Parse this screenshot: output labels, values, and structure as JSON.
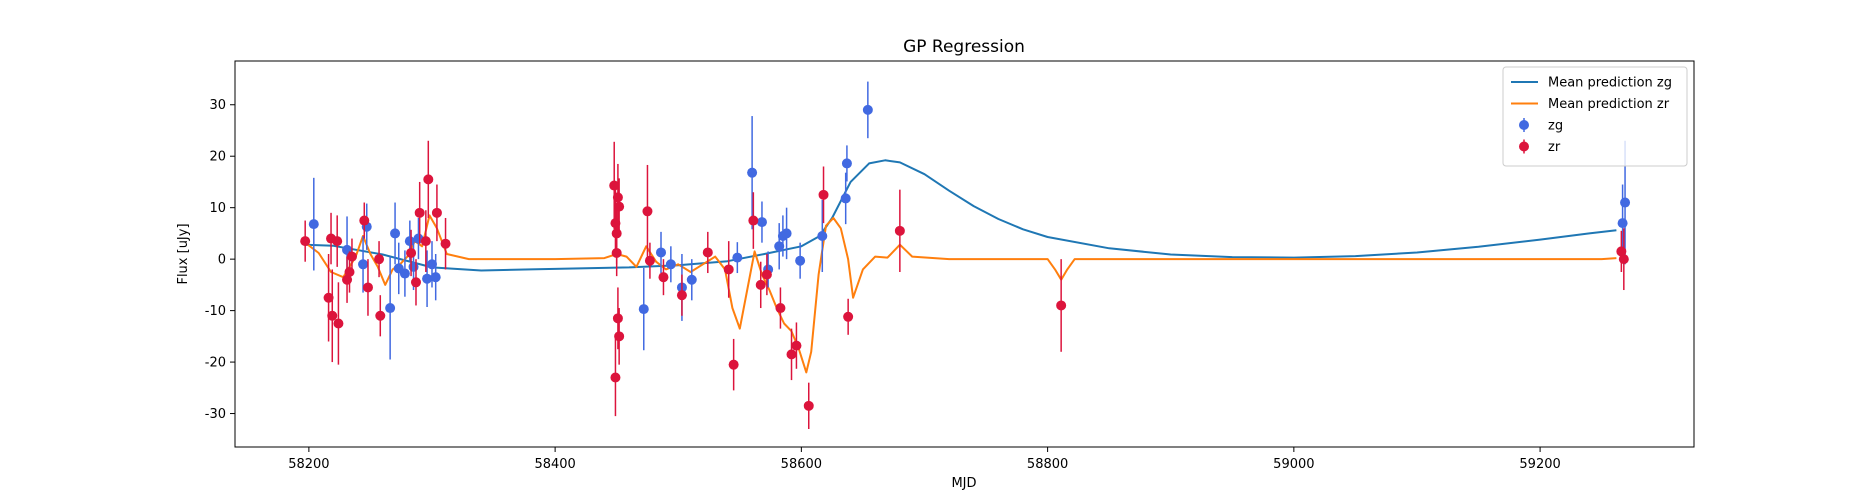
{
  "chart_data": {
    "type": "scatter",
    "title": "GP Regression",
    "xlabel": "MJD",
    "ylabel": "Flux [uJy]",
    "xlim": [
      58140,
      59325
    ],
    "ylim": [
      -36.5,
      38.5
    ],
    "xticks": [
      58200,
      58400,
      58600,
      58800,
      59000,
      59200
    ],
    "yticks": [
      -30,
      -20,
      -10,
      0,
      10,
      20,
      30
    ],
    "grid": false,
    "legend_position": "top-right",
    "legend": [
      {
        "label": "Mean prediction zg",
        "kind": "line",
        "color": "#1f77b4"
      },
      {
        "label": "Mean prediction zr",
        "kind": "line",
        "color": "#ff7f0e"
      },
      {
        "label": "zg",
        "kind": "errorbar",
        "color": "#4169e1"
      },
      {
        "label": "zr",
        "kind": "errorbar",
        "color": "#dc143c"
      }
    ],
    "series": [
      {
        "name": "Mean prediction zg",
        "kind": "line",
        "color": "#1f77b4",
        "x": [
          58197,
          58220,
          58260,
          58300,
          58340,
          58380,
          58420,
          58460,
          58500,
          58540,
          58570,
          58600,
          58615,
          58625,
          58640,
          58655,
          58668,
          58680,
          58700,
          58720,
          58740,
          58760,
          58780,
          58800,
          58850,
          58900,
          58950,
          59000,
          59050,
          59100,
          59150,
          59200,
          59240,
          59262
        ],
        "y": [
          2.8,
          2.6,
          0.9,
          -1.6,
          -2.2,
          -2.0,
          -1.8,
          -1.6,
          -1.2,
          -0.4,
          1.0,
          2.5,
          4.5,
          8.0,
          15.0,
          18.6,
          19.2,
          18.8,
          16.5,
          13.3,
          10.3,
          7.8,
          5.8,
          4.3,
          2.1,
          0.9,
          0.4,
          0.3,
          0.6,
          1.3,
          2.4,
          3.8,
          5.0,
          5.6
        ]
      },
      {
        "name": "Mean prediction zr",
        "kind": "line",
        "color": "#ff7f0e",
        "x": [
          58197,
          58208,
          58218,
          58228,
          58238,
          58244,
          58250,
          58256,
          58262,
          58268,
          58274,
          58280,
          58286,
          58292,
          58298,
          58304,
          58312,
          58330,
          58400,
          58440,
          58450,
          58458,
          58466,
          58474,
          58482,
          58490,
          58500,
          58510,
          58520,
          58530,
          58538,
          58544,
          58550,
          58556,
          58562,
          58568,
          58574,
          58580,
          58586,
          58592,
          58598,
          58604,
          58608,
          58614,
          58620,
          58626,
          58632,
          58638,
          58642,
          58650,
          58660,
          58670,
          58680,
          58690,
          58720,
          58800,
          58806,
          58811,
          58816,
          58822,
          58840,
          59000,
          59250,
          59262
        ],
        "y": [
          3.2,
          1.2,
          -2.5,
          -3.5,
          0.5,
          4.5,
          1.0,
          -1.5,
          -5.0,
          -2.0,
          -1.0,
          0.5,
          3.5,
          2.5,
          8.5,
          6.0,
          1.0,
          0.0,
          0.0,
          0.2,
          1.0,
          0.5,
          -1.5,
          2.5,
          -0.5,
          -2.0,
          -1.0,
          -2.5,
          -1.0,
          0.5,
          -2.0,
          -9.5,
          -13.5,
          -6.0,
          1.5,
          -3.0,
          -6.0,
          -9.5,
          -12.5,
          -14.0,
          -17.5,
          -22.0,
          -18.0,
          -3.0,
          6.5,
          8.0,
          6.0,
          0.0,
          -7.5,
          -2.0,
          0.5,
          0.3,
          2.8,
          0.5,
          0.0,
          0.0,
          -2.0,
          -4.0,
          -2.0,
          0.0,
          0.0,
          0.0,
          0.0,
          0.2
        ]
      },
      {
        "name": "zg",
        "kind": "errorbar",
        "color": "#4169e1",
        "points": [
          {
            "x": 58204,
            "y": 6.8,
            "err": 9.0
          },
          {
            "x": 58231,
            "y": 1.8,
            "err": 6.5
          },
          {
            "x": 58244,
            "y": -1.0,
            "err": 5.5
          },
          {
            "x": 58247,
            "y": 6.3,
            "err": 4.5
          },
          {
            "x": 58266,
            "y": -9.5,
            "err": 10.0
          },
          {
            "x": 58270,
            "y": 5.0,
            "err": 6.0
          },
          {
            "x": 58273,
            "y": -1.8,
            "err": 5.0
          },
          {
            "x": 58278,
            "y": -2.8,
            "err": 4.5
          },
          {
            "x": 58282,
            "y": 3.5,
            "err": 4.0
          },
          {
            "x": 58285,
            "y": -1.5,
            "err": 4.5
          },
          {
            "x": 58289,
            "y": 4.0,
            "err": 4.0
          },
          {
            "x": 58296,
            "y": -3.8,
            "err": 5.5
          },
          {
            "x": 58300,
            "y": -1.0,
            "err": 4.5
          },
          {
            "x": 58303,
            "y": -3.5,
            "err": 4.5
          },
          {
            "x": 58472,
            "y": -9.7,
            "err": 8.0
          },
          {
            "x": 58486,
            "y": 1.3,
            "err": 4.0
          },
          {
            "x": 58494,
            "y": -1.0,
            "err": 3.5
          },
          {
            "x": 58503,
            "y": -5.5,
            "err": 6.5
          },
          {
            "x": 58511,
            "y": -4.0,
            "err": 4.0
          },
          {
            "x": 58548,
            "y": 0.3,
            "err": 3.0
          },
          {
            "x": 58560,
            "y": 16.8,
            "err": 11.0
          },
          {
            "x": 58568,
            "y": 7.2,
            "err": 4.0
          },
          {
            "x": 58573,
            "y": -2.0,
            "err": 3.5
          },
          {
            "x": 58582,
            "y": 2.5,
            "err": 4.5
          },
          {
            "x": 58585,
            "y": 4.5,
            "err": 4.0
          },
          {
            "x": 58588,
            "y": 5.0,
            "err": 5.0
          },
          {
            "x": 58599,
            "y": -0.3,
            "err": 3.5
          },
          {
            "x": 58617,
            "y": 4.5,
            "err": 7.0
          },
          {
            "x": 58636,
            "y": 11.8,
            "err": 5.0
          },
          {
            "x": 58637,
            "y": 18.6,
            "err": 3.5
          },
          {
            "x": 58654,
            "y": 29.0,
            "err": 5.5
          },
          {
            "x": 59267,
            "y": 7.0,
            "err": 7.5
          },
          {
            "x": 59269,
            "y": 11.0,
            "err": 12.0
          }
        ]
      },
      {
        "name": "zr",
        "kind": "errorbar",
        "color": "#dc143c",
        "points": [
          {
            "x": 58197,
            "y": 3.5,
            "err": 4.0
          },
          {
            "x": 58216,
            "y": -7.5,
            "err": 8.5
          },
          {
            "x": 58218,
            "y": 4.0,
            "err": 5.0
          },
          {
            "x": 58219,
            "y": -11.0,
            "err": 9.0
          },
          {
            "x": 58223,
            "y": 3.5,
            "err": 5.0
          },
          {
            "x": 58224,
            "y": -12.5,
            "err": 8.0
          },
          {
            "x": 58231,
            "y": -4.0,
            "err": 4.5
          },
          {
            "x": 58233,
            "y": -2.5,
            "err": 4.0
          },
          {
            "x": 58235,
            "y": 0.5,
            "err": 3.5
          },
          {
            "x": 58245,
            "y": 7.5,
            "err": 3.5
          },
          {
            "x": 58248,
            "y": -5.5,
            "err": 5.5
          },
          {
            "x": 58257,
            "y": 0.0,
            "err": 3.5
          },
          {
            "x": 58258,
            "y": -11.0,
            "err": 4.0
          },
          {
            "x": 58283,
            "y": 1.2,
            "err": 4.5
          },
          {
            "x": 58287,
            "y": -4.5,
            "err": 4.5
          },
          {
            "x": 58290,
            "y": 9.0,
            "err": 6.0
          },
          {
            "x": 58295,
            "y": 3.5,
            "err": 6.0
          },
          {
            "x": 58297,
            "y": 15.5,
            "err": 7.5
          },
          {
            "x": 58304,
            "y": 9.0,
            "err": 5.5
          },
          {
            "x": 58311,
            "y": 3.0,
            "err": 5.0
          },
          {
            "x": 58448,
            "y": 14.3,
            "err": 8.5
          },
          {
            "x": 58449,
            "y": 7.0,
            "err": 6.5
          },
          {
            "x": 58450,
            "y": 5.0,
            "err": 6.0
          },
          {
            "x": 58450,
            "y": 1.2,
            "err": 4.5
          },
          {
            "x": 58451,
            "y": 12.0,
            "err": 6.5
          },
          {
            "x": 58452,
            "y": 10.2,
            "err": 5.5
          },
          {
            "x": 58449,
            "y": -23.0,
            "err": 7.5
          },
          {
            "x": 58451,
            "y": -11.5,
            "err": 6.0
          },
          {
            "x": 58452,
            "y": -15.0,
            "err": 5.5
          },
          {
            "x": 58475,
            "y": 9.3,
            "err": 9.0
          },
          {
            "x": 58477,
            "y": -0.3,
            "err": 3.5
          },
          {
            "x": 58488,
            "y": -3.5,
            "err": 3.5
          },
          {
            "x": 58503,
            "y": -7.0,
            "err": 4.0
          },
          {
            "x": 58524,
            "y": 1.3,
            "err": 4.0
          },
          {
            "x": 58541,
            "y": -2.0,
            "err": 5.5
          },
          {
            "x": 58545,
            "y": -20.5,
            "err": 5.0
          },
          {
            "x": 58561,
            "y": 7.5,
            "err": 5.5
          },
          {
            "x": 58567,
            "y": -5.0,
            "err": 4.5
          },
          {
            "x": 58572,
            "y": -3.0,
            "err": 4.0
          },
          {
            "x": 58583,
            "y": -9.5,
            "err": 4.0
          },
          {
            "x": 58592,
            "y": -18.5,
            "err": 5.0
          },
          {
            "x": 58596,
            "y": -16.8,
            "err": 4.5
          },
          {
            "x": 58606,
            "y": -28.5,
            "err": 4.5
          },
          {
            "x": 58618,
            "y": 12.5,
            "err": 5.5
          },
          {
            "x": 58638,
            "y": -11.2,
            "err": 3.5
          },
          {
            "x": 58680,
            "y": 5.5,
            "err": 8.0
          },
          {
            "x": 58811,
            "y": -9.0,
            "err": 9.0
          },
          {
            "x": 59266,
            "y": 1.5,
            "err": 4.0
          },
          {
            "x": 59268,
            "y": 0.0,
            "err": 6.0
          }
        ]
      }
    ]
  }
}
